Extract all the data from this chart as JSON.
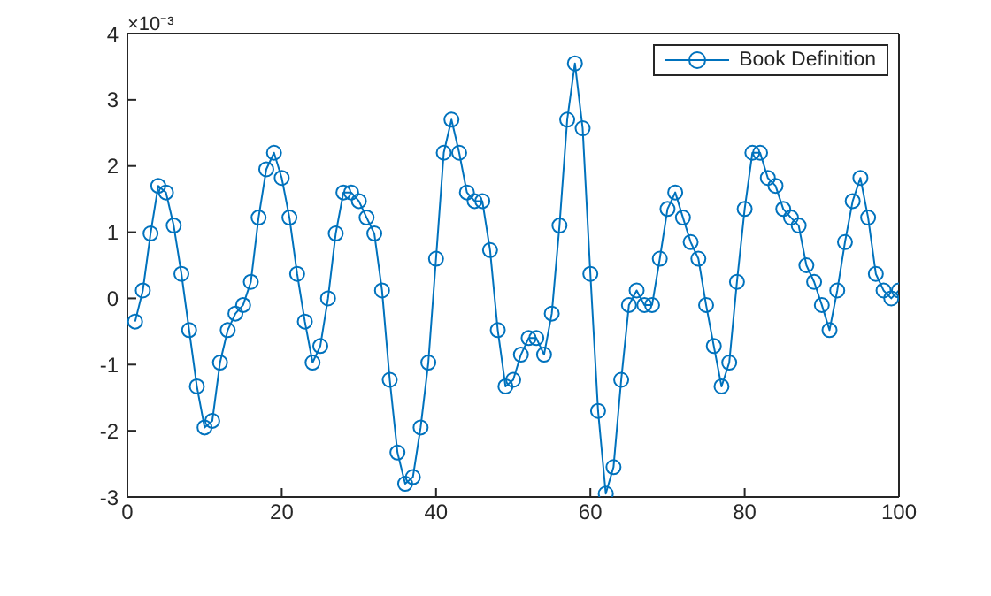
{
  "chart_data": {
    "type": "line",
    "x": [
      1,
      2,
      3,
      4,
      5,
      6,
      7,
      8,
      9,
      10,
      11,
      12,
      13,
      14,
      15,
      16,
      17,
      18,
      19,
      20,
      21,
      22,
      23,
      24,
      25,
      26,
      27,
      28,
      29,
      30,
      31,
      32,
      33,
      34,
      35,
      36,
      37,
      38,
      39,
      40,
      41,
      42,
      43,
      44,
      45,
      46,
      47,
      48,
      49,
      50,
      51,
      52,
      53,
      54,
      55,
      56,
      57,
      58,
      59,
      60,
      61,
      62,
      63,
      64,
      65,
      66,
      67,
      68,
      69,
      70,
      71,
      72,
      73,
      74,
      75,
      76,
      77,
      78,
      79,
      80,
      81,
      82,
      83,
      84,
      85,
      86,
      87,
      88,
      89,
      90,
      91,
      92,
      93,
      94,
      95,
      96,
      97,
      98,
      99,
      100
    ],
    "series": [
      {
        "name": "Book Definition",
        "color": "#0072bd",
        "values": [
          -0.35,
          0.12,
          0.98,
          1.7,
          1.6,
          1.1,
          0.37,
          -0.48,
          -1.33,
          -1.95,
          -1.85,
          -0.97,
          -0.48,
          -0.23,
          -0.1,
          0.25,
          1.22,
          1.95,
          2.2,
          1.82,
          1.22,
          0.37,
          -0.35,
          -0.97,
          -0.72,
          0.0,
          0.98,
          1.6,
          1.6,
          1.47,
          1.22,
          0.98,
          0.12,
          -1.23,
          -2.33,
          -2.8,
          -2.7,
          -1.95,
          -0.97,
          0.6,
          2.2,
          2.7,
          2.2,
          1.6,
          1.47,
          1.47,
          0.73,
          -0.48,
          -1.33,
          -1.23,
          -0.85,
          -0.6,
          -0.6,
          -0.85,
          -0.23,
          1.1,
          2.7,
          3.55,
          2.57,
          0.37,
          -1.7,
          -2.95,
          -2.55,
          -1.23,
          -0.1,
          0.12,
          -0.1,
          -0.1,
          0.6,
          1.35,
          1.6,
          1.22,
          0.85,
          0.6,
          -0.1,
          -0.72,
          -1.33,
          -0.97,
          0.25,
          1.35,
          2.2,
          2.2,
          1.82,
          1.7,
          1.35,
          1.22,
          1.1,
          0.5,
          0.25,
          -0.1,
          -0.48,
          0.12,
          0.85,
          1.47,
          1.82,
          1.22,
          0.37,
          0.12,
          0.0,
          0.12
        ]
      }
    ],
    "xlim": [
      0,
      100
    ],
    "xticks": [
      0,
      20,
      40,
      60,
      80,
      100
    ],
    "ylim": [
      -3,
      4
    ],
    "yticks": [
      -3,
      -2,
      -1,
      0,
      1,
      2,
      3,
      4
    ],
    "annotations": [
      "×10⁻³"
    ],
    "marker": "circle",
    "legend": "top right",
    "grid": false
  }
}
